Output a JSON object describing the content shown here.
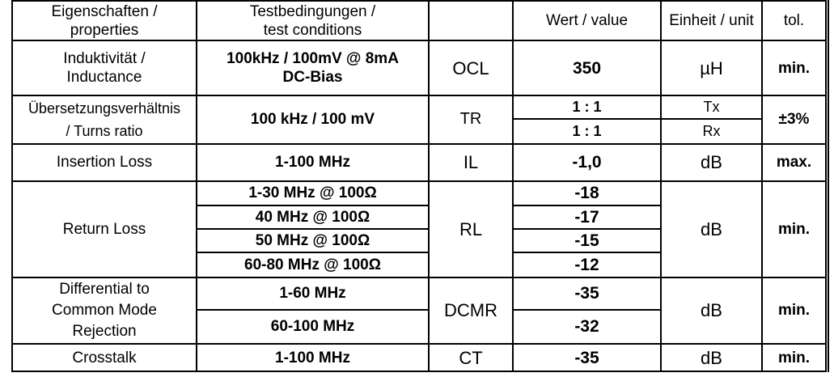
{
  "header": {
    "properties": [
      "Eigenschaften /",
      "properties"
    ],
    "conditions": [
      "Testbedingungen /",
      "test conditions"
    ],
    "symbol": "",
    "value": "Wert / value",
    "unit": "Einheit / unit",
    "tol": "tol."
  },
  "ocl": {
    "property": [
      "Induktivität /",
      "Inductance"
    ],
    "condition": [
      "100kHz / 100mV @ 8mA",
      "DC-Bias"
    ],
    "symbol": "OCL",
    "value": "350",
    "unit": "µH",
    "tol": "min."
  },
  "tr": {
    "property": [
      "Übersetzungsverhältnis",
      "/ Turns ratio"
    ],
    "condition": "100 kHz / 100 mV",
    "symbol": "TR",
    "values": [
      "1 : 1",
      "1 : 1"
    ],
    "units": [
      "Tx",
      "Rx"
    ],
    "tol": "±3%"
  },
  "il": {
    "property": "Insertion Loss",
    "condition": "1-100 MHz",
    "symbol": "IL",
    "value": "-1,0",
    "unit": "dB",
    "tol": "max."
  },
  "rl": {
    "property": "Return Loss",
    "conditions": [
      "1-30 MHz @ 100Ω",
      "40 MHz @ 100Ω",
      "50 MHz @ 100Ω",
      "60-80 MHz @ 100Ω"
    ],
    "symbol": "RL",
    "values": [
      "-18",
      "-17",
      "-15",
      "-12"
    ],
    "unit": "dB",
    "tol": "min."
  },
  "dcmr": {
    "property": [
      "Differential to",
      "Common Mode",
      "Rejection"
    ],
    "conditions": [
      "1-60 MHz",
      "60-100 MHz"
    ],
    "symbol": "DCMR",
    "values": [
      "-35",
      "-32"
    ],
    "unit": "dB",
    "tol": "min."
  },
  "ct": {
    "property": "Crosstalk",
    "condition": "1-100 MHz",
    "symbol": "CT",
    "value": "-35",
    "unit": "dB",
    "tol": "min."
  }
}
